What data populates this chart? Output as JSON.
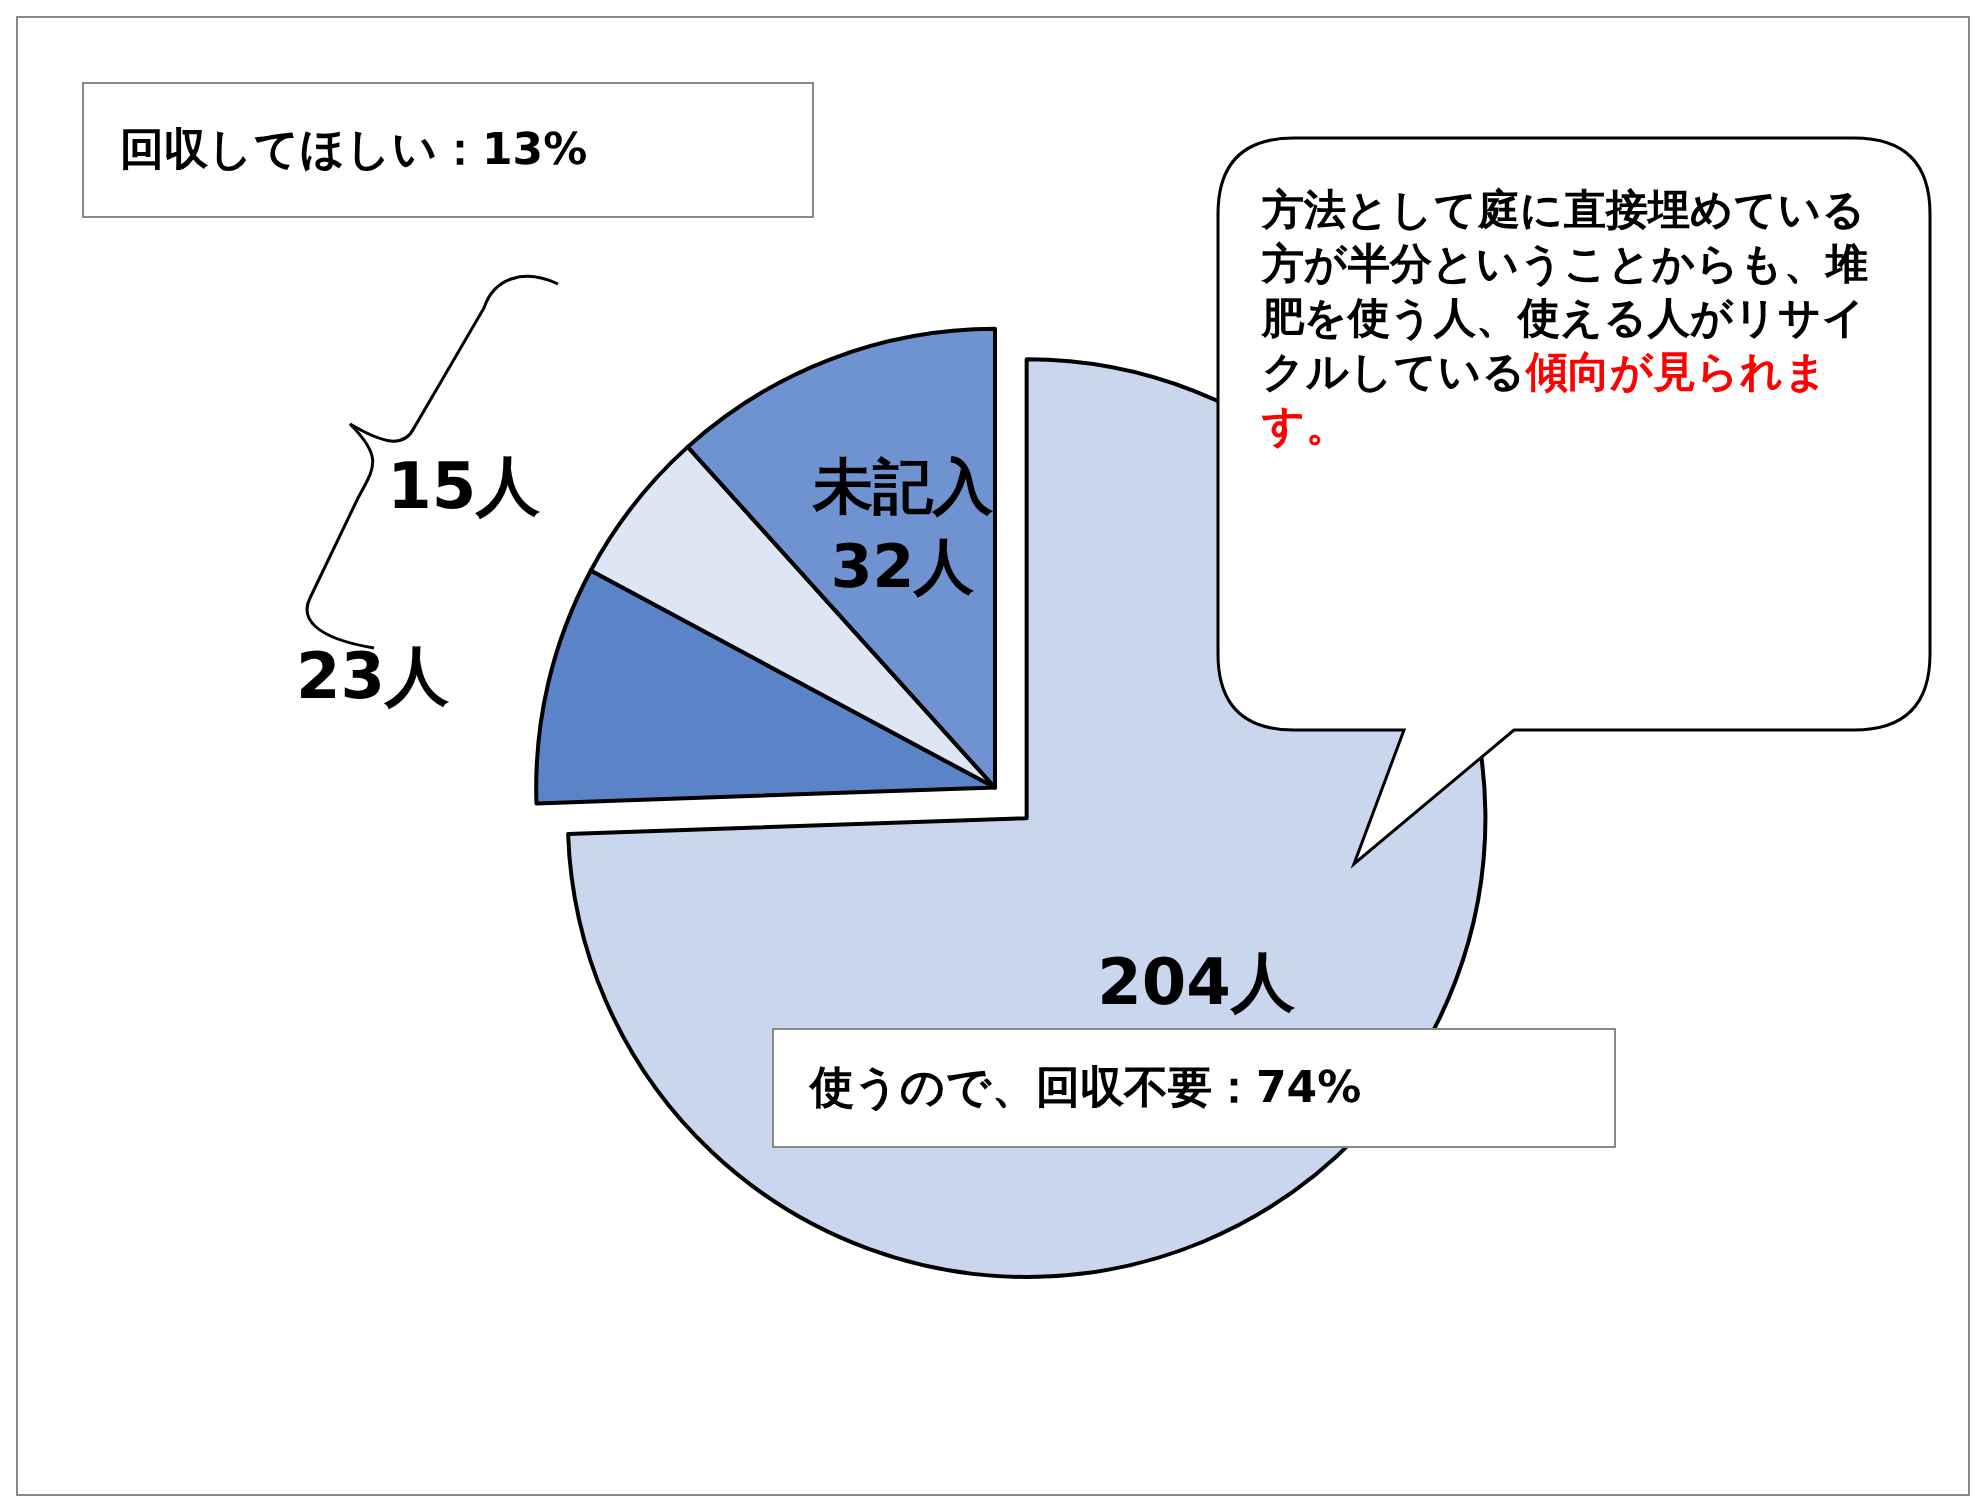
{
  "chart_data": {
    "type": "pie",
    "categories": [
      null,
      null,
      null,
      "未記入"
    ],
    "values": [
      204,
      23,
      15,
      32
    ],
    "value_labels": [
      "204人",
      "23人",
      "15人",
      "32人"
    ],
    "colors": [
      "#c9d6ee",
      "#5b84c8",
      "#dde6f5",
      "#6f93d0"
    ],
    "legend": false,
    "annotations": [
      "回収してほしい：13%",
      "使うので、回収不要：74%",
      "方法として庭に直接埋めている方が半分ということからも、堆肥を使う人、使える人がリサイクルしている",
      "傾向が見られます。"
    ]
  }
}
